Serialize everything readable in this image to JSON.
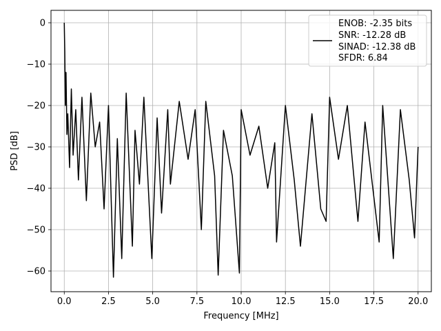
{
  "chart_data": {
    "type": "line",
    "xlabel": "Frequency [MHz]",
    "ylabel": "PSD [dB]",
    "xlim": [
      -0.75,
      20.75
    ],
    "ylim": [
      -65,
      3
    ],
    "xticks": [
      0.0,
      2.5,
      5.0,
      7.5,
      10.0,
      12.5,
      15.0,
      17.5,
      20.0
    ],
    "xtick_labels": [
      "0.0",
      "2.5",
      "5.0",
      "7.5",
      "10.0",
      "12.5",
      "15.0",
      "17.5",
      "20.0"
    ],
    "yticks": [
      0,
      -10,
      -20,
      -30,
      -40,
      -50,
      -60
    ],
    "ytick_labels": [
      "0",
      "−10",
      "−20",
      "−30",
      "−40",
      "−50",
      "−60"
    ],
    "grid": true,
    "legend": {
      "placement": "top-right",
      "entries": [
        "ENOB: -2.35 bits",
        "SNR: -12.28 dB",
        "SINAD: -12.38 dB",
        "SFDR: 6.84"
      ]
    },
    "series": [
      {
        "color": "#000000",
        "x": [
          0.0,
          0.03,
          0.06,
          0.1,
          0.15,
          0.2,
          0.3,
          0.4,
          0.5,
          0.65,
          0.8,
          1.0,
          1.25,
          1.5,
          1.75,
          2.0,
          2.25,
          2.5,
          2.78,
          3.0,
          3.25,
          3.5,
          3.85,
          4.0,
          4.25,
          4.5,
          4.95,
          5.25,
          5.5,
          5.85,
          6.0,
          6.5,
          7.0,
          7.4,
          7.75,
          8.0,
          8.5,
          8.7,
          9.0,
          9.5,
          9.9,
          10.0,
          10.5,
          11.0,
          11.5,
          11.9,
          12.0,
          12.5,
          13.0,
          13.35,
          14.0,
          14.5,
          14.8,
          15.0,
          15.5,
          16.0,
          16.6,
          17.0,
          17.8,
          18.0,
          18.6,
          19.0,
          19.5,
          19.8,
          20.0
        ],
        "y": [
          0.0,
          -7.0,
          -20.0,
          -12.0,
          -27.0,
          -22.0,
          -35.0,
          -16.0,
          -32.0,
          -21.0,
          -38.0,
          -18.0,
          -43.0,
          -17.0,
          -30.0,
          -24.0,
          -45.0,
          -20.0,
          -61.5,
          -28.0,
          -57.0,
          -17.0,
          -54.0,
          -26.0,
          -39.0,
          -18.0,
          -57.0,
          -23.0,
          -46.0,
          -21.0,
          -39.0,
          -19.0,
          -33.0,
          -21.0,
          -50.0,
          -19.0,
          -37.0,
          -61.0,
          -26.0,
          -37.0,
          -60.5,
          -21.0,
          -32.0,
          -25.0,
          -40.0,
          -29.0,
          -53.0,
          -20.0,
          -38.0,
          -54.0,
          -22.0,
          -45.0,
          -48.0,
          -18.0,
          -33.0,
          -20.0,
          -48.0,
          -24.0,
          -53.0,
          -20.0,
          -57.0,
          -21.0,
          -38.0,
          -52.0,
          -30.0
        ]
      }
    ]
  }
}
